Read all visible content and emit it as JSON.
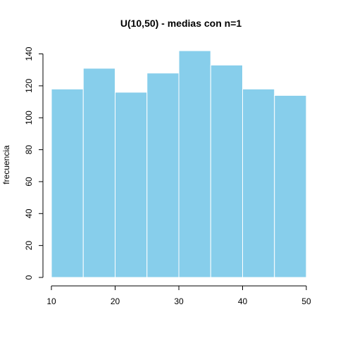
{
  "chart_data": {
    "type": "bar",
    "title": "U(10,50) - medias con n=1",
    "xlabel": "",
    "ylabel": "frecuencia",
    "bins": [
      {
        "start": 10,
        "end": 15,
        "value": 118
      },
      {
        "start": 15,
        "end": 20,
        "value": 131
      },
      {
        "start": 20,
        "end": 25,
        "value": 116
      },
      {
        "start": 25,
        "end": 30,
        "value": 128
      },
      {
        "start": 30,
        "end": 35,
        "value": 142
      },
      {
        "start": 35,
        "end": 40,
        "value": 133
      },
      {
        "start": 40,
        "end": 45,
        "value": 118
      },
      {
        "start": 45,
        "end": 50,
        "value": 114
      }
    ],
    "xlim": [
      10,
      50
    ],
    "ylim": [
      0,
      142
    ],
    "xticks": [
      10,
      20,
      30,
      40,
      50
    ],
    "yticks": [
      0,
      20,
      40,
      60,
      80,
      100,
      120,
      140
    ],
    "bar_color": "#87CEEB",
    "bar_border_color": "#ffffff",
    "grid": false
  }
}
